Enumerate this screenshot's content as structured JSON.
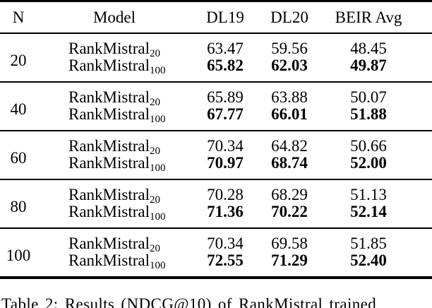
{
  "table": {
    "headers": {
      "n": "N",
      "model": "Model",
      "dl19": "DL19",
      "dl20": "DL20",
      "beir": "BEIR Avg"
    },
    "groups": [
      {
        "n": "20",
        "rows": [
          {
            "model_base": "RankMistral",
            "model_sub": "20",
            "dl19": "63.47",
            "dl20": "59.56",
            "beir": "48.45"
          },
          {
            "model_base": "RankMistral",
            "model_sub": "100",
            "dl19": "65.82",
            "dl20": "62.03",
            "beir": "49.87"
          }
        ]
      },
      {
        "n": "40",
        "rows": [
          {
            "model_base": "RankMistral",
            "model_sub": "20",
            "dl19": "65.89",
            "dl20": "63.88",
            "beir": "50.07"
          },
          {
            "model_base": "RankMistral",
            "model_sub": "100",
            "dl19": "67.77",
            "dl20": "66.01",
            "beir": "51.88"
          }
        ]
      },
      {
        "n": "60",
        "rows": [
          {
            "model_base": "RankMistral",
            "model_sub": "20",
            "dl19": "70.34",
            "dl20": "64.82",
            "beir": "50.66"
          },
          {
            "model_base": "RankMistral",
            "model_sub": "100",
            "dl19": "70.97",
            "dl20": "68.74",
            "beir": "52.00"
          }
        ]
      },
      {
        "n": "80",
        "rows": [
          {
            "model_base": "RankMistral",
            "model_sub": "20",
            "dl19": "70.28",
            "dl20": "68.29",
            "beir": "51.13"
          },
          {
            "model_base": "RankMistral",
            "model_sub": "100",
            "dl19": "71.36",
            "dl20": "70.22",
            "beir": "52.14"
          }
        ]
      },
      {
        "n": "100",
        "rows": [
          {
            "model_base": "RankMistral",
            "model_sub": "20",
            "dl19": "70.34",
            "dl20": "69.58",
            "beir": "51.85"
          },
          {
            "model_base": "RankMistral",
            "model_sub": "100",
            "dl19": "72.55",
            "dl20": "71.29",
            "beir": "52.40"
          }
        ]
      }
    ]
  },
  "caption": "Table 2: Results (NDCG@10) of RankMistral trained"
}
